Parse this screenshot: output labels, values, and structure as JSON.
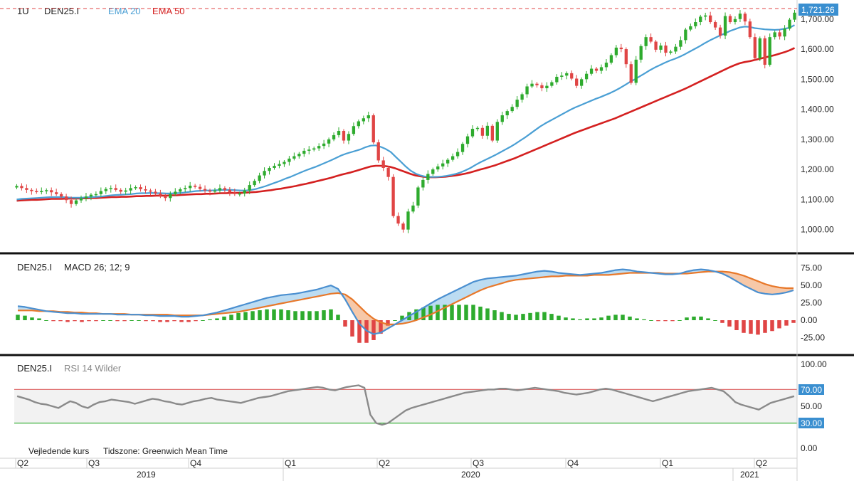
{
  "header": {
    "interval": "1U",
    "symbol": "DEN25.I",
    "ema20_label": "EMA 20",
    "ema50_label": "EMA 50",
    "last_price": "1,721.26"
  },
  "macd_panel": {
    "symbol": "DEN25.I",
    "label": "MACD 26; 12; 9"
  },
  "rsi_panel": {
    "symbol": "DEN25.I",
    "label": "RSI 14 Wilder",
    "upper_level": "70.00",
    "lower_level": "30.00"
  },
  "footer": {
    "price_note": "Vejledende kurs",
    "timezone": "Tidszone: Greenwich Mean Time"
  },
  "colors": {
    "up": "#2eab2e",
    "down": "#e04545",
    "ema20": "#4a9fd4",
    "ema50": "#d42020",
    "macd_line": "#4a8fd0",
    "signal_line": "#e8782a",
    "rsi_line": "#8a8a8a",
    "level70": "#e07070",
    "level30": "#3bb03b",
    "tag_bg": "#3a8fd0"
  },
  "chart_data": [
    {
      "type": "candlestick",
      "title": "DEN25.I 1U",
      "y_ticks": [
        "1,000.00",
        "1,100.00",
        "1,200.00",
        "1,300.00",
        "1,400.00",
        "1,500.00",
        "1,600.00",
        "1,700.00"
      ],
      "ylim": [
        940,
        1735
      ],
      "x_ticks": [
        "Q2",
        "Q3",
        "Q4",
        "Q1",
        "Q2",
        "Q3",
        "Q4",
        "Q1",
        "Q2"
      ],
      "x_years": [
        "2019",
        "2020",
        "2021"
      ],
      "grid": false,
      "ohlc_close": [
        1145,
        1138,
        1132,
        1128,
        1125,
        1128,
        1131,
        1124,
        1118,
        1110,
        1098,
        1085,
        1097,
        1104,
        1110,
        1116,
        1118,
        1128,
        1135,
        1138,
        1132,
        1126,
        1130,
        1138,
        1141,
        1134,
        1130,
        1126,
        1120,
        1113,
        1105,
        1118,
        1126,
        1134,
        1138,
        1146,
        1142,
        1135,
        1130,
        1126,
        1130,
        1138,
        1132,
        1124,
        1118,
        1120,
        1130,
        1148,
        1162,
        1180,
        1195,
        1205,
        1212,
        1218,
        1225,
        1236,
        1244,
        1252,
        1262,
        1266,
        1270,
        1278,
        1286,
        1300,
        1314,
        1328,
        1296,
        1318,
        1344,
        1360,
        1370,
        1380,
        1290,
        1230,
        1205,
        1175,
        1045,
        1020,
        1000,
        1060,
        1080,
        1140,
        1165,
        1185,
        1200,
        1210,
        1220,
        1232,
        1244,
        1258,
        1285,
        1310,
        1335,
        1338,
        1312,
        1345,
        1296,
        1358,
        1380,
        1394,
        1408,
        1432,
        1450,
        1476,
        1485,
        1480,
        1470,
        1478,
        1490,
        1508,
        1512,
        1520,
        1502,
        1478,
        1500,
        1518,
        1535,
        1528,
        1540,
        1555,
        1580,
        1605,
        1600,
        1550,
        1488,
        1565,
        1610,
        1640,
        1625,
        1598,
        1612,
        1588,
        1592,
        1608,
        1630,
        1665,
        1676,
        1690,
        1708,
        1712,
        1690,
        1672,
        1645,
        1710,
        1690,
        1700,
        1718,
        1692,
        1640,
        1570,
        1636,
        1548,
        1640,
        1656,
        1642,
        1668,
        1698,
        1721.26
      ],
      "ema20": [
        1100,
        1102,
        1103,
        1104,
        1105,
        1106,
        1107,
        1108,
        1108,
        1108,
        1107,
        1106,
        1106,
        1106,
        1107,
        1108,
        1109,
        1110,
        1112,
        1114,
        1115,
        1116,
        1117,
        1118,
        1120,
        1121,
        1121,
        1122,
        1121,
        1121,
        1120,
        1120,
        1121,
        1122,
        1124,
        1126,
        1128,
        1129,
        1130,
        1130,
        1131,
        1132,
        1132,
        1132,
        1131,
        1130,
        1130,
        1132,
        1135,
        1140,
        1145,
        1151,
        1157,
        1163,
        1170,
        1176,
        1183,
        1190,
        1197,
        1203,
        1209,
        1216,
        1223,
        1230,
        1238,
        1246,
        1252,
        1257,
        1262,
        1267,
        1274,
        1279,
        1280,
        1275,
        1268,
        1258,
        1242,
        1226,
        1210,
        1196,
        1186,
        1180,
        1176,
        1175,
        1175,
        1176,
        1178,
        1181,
        1185,
        1190,
        1197,
        1205,
        1215,
        1224,
        1232,
        1240,
        1248,
        1257,
        1266,
        1275,
        1285,
        1296,
        1307,
        1319,
        1331,
        1343,
        1353,
        1362,
        1371,
        1380,
        1389,
        1398,
        1406,
        1413,
        1420,
        1427,
        1434,
        1440,
        1447,
        1454,
        1462,
        1471,
        1481,
        1491,
        1500,
        1510,
        1520,
        1530,
        1539,
        1547,
        1555,
        1562,
        1568,
        1575,
        1583,
        1592,
        1601,
        1610,
        1620,
        1629,
        1637,
        1645,
        1652,
        1660,
        1666,
        1672,
        1675,
        1674,
        1670,
        1668,
        1666,
        1665,
        1664,
        1665,
        1668,
        1671,
        1680
      ],
      "ema50": [
        1096,
        1097,
        1098,
        1099,
        1099,
        1100,
        1101,
        1102,
        1102,
        1102,
        1103,
        1103,
        1103,
        1104,
        1104,
        1105,
        1105,
        1106,
        1107,
        1108,
        1108,
        1109,
        1109,
        1110,
        1111,
        1111,
        1112,
        1112,
        1113,
        1113,
        1113,
        1114,
        1114,
        1115,
        1116,
        1117,
        1118,
        1118,
        1119,
        1119,
        1120,
        1121,
        1121,
        1122,
        1122,
        1122,
        1123,
        1124,
        1125,
        1127,
        1129,
        1131,
        1134,
        1136,
        1139,
        1142,
        1145,
        1149,
        1152,
        1156,
        1160,
        1164,
        1168,
        1172,
        1177,
        1182,
        1186,
        1190,
        1195,
        1200,
        1205,
        1210,
        1212,
        1212,
        1211,
        1208,
        1203,
        1197,
        1191,
        1185,
        1180,
        1177,
        1175,
        1174,
        1174,
        1175,
        1176,
        1178,
        1180,
        1183,
        1186,
        1190,
        1195,
        1200,
        1204,
        1209,
        1214,
        1220,
        1226,
        1232,
        1238,
        1245,
        1252,
        1259,
        1266,
        1273,
        1280,
        1287,
        1294,
        1301,
        1308,
        1315,
        1322,
        1328,
        1334,
        1340,
        1346,
        1352,
        1358,
        1364,
        1370,
        1377,
        1384,
        1391,
        1398,
        1405,
        1412,
        1419,
        1426,
        1433,
        1440,
        1447,
        1454,
        1461,
        1468,
        1476,
        1484,
        1492,
        1500,
        1508,
        1516,
        1524,
        1532,
        1540,
        1547,
        1553,
        1557,
        1560,
        1564,
        1568,
        1572,
        1576,
        1580,
        1585,
        1590,
        1596,
        1604
      ]
    },
    {
      "type": "line",
      "title": "DEN25.I MACD 26; 12; 9",
      "y_ticks": [
        "75.00",
        "50.00",
        "25.00",
        "0.00",
        "-25.00"
      ],
      "ylim": [
        -45,
        90
      ],
      "macd": [
        20,
        19,
        17,
        15,
        13,
        12,
        11,
        10,
        10,
        9,
        9,
        9,
        9,
        9,
        8,
        8,
        8,
        8,
        7,
        7,
        6,
        6,
        6,
        5,
        5,
        6,
        7,
        9,
        11,
        14,
        17,
        20,
        23,
        26,
        29,
        32,
        34,
        36,
        37,
        38,
        40,
        42,
        44,
        47,
        50,
        45,
        30,
        12,
        -5,
        -15,
        -20,
        -18,
        -12,
        -6,
        0,
        6,
        12,
        18,
        24,
        30,
        35,
        40,
        45,
        50,
        55,
        58,
        60,
        61,
        62,
        63,
        64,
        66,
        68,
        70,
        71,
        70,
        68,
        67,
        66,
        65,
        66,
        67,
        68,
        70,
        72,
        73,
        72,
        70,
        69,
        68,
        67,
        66,
        66,
        67,
        70,
        72,
        73,
        72,
        70,
        67,
        62,
        56,
        50,
        45,
        40,
        38,
        37,
        38,
        40,
        43
      ],
      "signal": [
        14,
        14,
        14,
        13,
        13,
        13,
        12,
        12,
        11,
        11,
        10,
        10,
        9,
        9,
        9,
        9,
        8,
        8,
        8,
        8,
        8,
        8,
        7,
        7,
        7,
        7,
        7,
        8,
        9,
        10,
        11,
        12,
        14,
        16,
        18,
        20,
        22,
        24,
        26,
        28,
        30,
        32,
        34,
        36,
        38,
        39,
        37,
        30,
        20,
        10,
        2,
        -3,
        -6,
        -6,
        -5,
        -3,
        0,
        4,
        8,
        13,
        18,
        23,
        28,
        33,
        38,
        43,
        47,
        50,
        53,
        56,
        58,
        59,
        60,
        61,
        62,
        63,
        63,
        64,
        64,
        64,
        64,
        65,
        65,
        65,
        66,
        67,
        68,
        68,
        68,
        68,
        68,
        67,
        67,
        67,
        67,
        68,
        69,
        70,
        70,
        70,
        69,
        67,
        64,
        60,
        56,
        52,
        49,
        47,
        46,
        46
      ]
    },
    {
      "type": "line",
      "title": "DEN25.I RSI 14 Wilder",
      "y_ticks": [
        "100.00",
        "50.00",
        "0.00"
      ],
      "ylim": [
        0,
        100
      ],
      "levels": [
        70,
        30
      ],
      "rsi": [
        62,
        60,
        58,
        55,
        53,
        52,
        50,
        48,
        52,
        56,
        54,
        50,
        48,
        52,
        55,
        56,
        58,
        57,
        56,
        55,
        53,
        55,
        57,
        59,
        58,
        56,
        55,
        53,
        52,
        54,
        56,
        57,
        59,
        60,
        58,
        57,
        56,
        55,
        54,
        56,
        58,
        60,
        61,
        62,
        64,
        66,
        68,
        69,
        70,
        71,
        72,
        73,
        72,
        70,
        69,
        71,
        73,
        74,
        75,
        72,
        40,
        30,
        28,
        30,
        35,
        40,
        45,
        48,
        50,
        52,
        54,
        56,
        58,
        60,
        62,
        64,
        66,
        67,
        68,
        69,
        70,
        70,
        71,
        71,
        70,
        69,
        70,
        71,
        72,
        71,
        70,
        69,
        68,
        66,
        65,
        64,
        65,
        66,
        68,
        70,
        71,
        70,
        68,
        66,
        64,
        62,
        60,
        58,
        56,
        58,
        60,
        62,
        64,
        66,
        68,
        69,
        70,
        71,
        72,
        70,
        68,
        62,
        55,
        52,
        50,
        48,
        46,
        50,
        54,
        56,
        58,
        60,
        62
      ]
    }
  ]
}
